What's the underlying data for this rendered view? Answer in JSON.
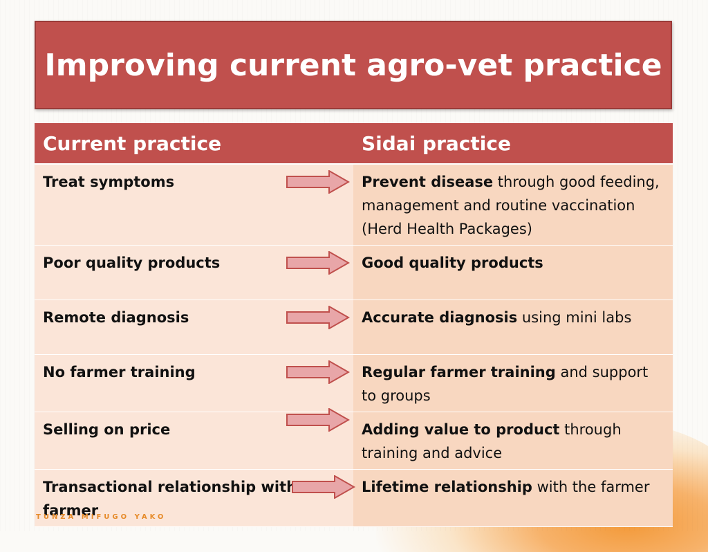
{
  "slide": {
    "title": "Improving current agro-vet practice",
    "footer_brand": "TUNZA MIFUGO YAKO"
  },
  "table": {
    "headers": {
      "current": "Current practice",
      "sidai": "Sidai practice"
    },
    "rows": [
      {
        "current": "Treat symptoms",
        "sidai_bold": "Prevent disease",
        "sidai_rest": " through good feeding, management and  routine vaccination (Herd Health Packages)"
      },
      {
        "current": "Poor quality products",
        "sidai_bold": "Good quality products",
        "sidai_rest": ""
      },
      {
        "current": "Remote diagnosis",
        "sidai_bold": "Accurate diagnosis",
        "sidai_rest": " using mini labs"
      },
      {
        "current": "No farmer training",
        "sidai_bold": "Regular farmer training",
        "sidai_rest": " and support to groups"
      },
      {
        "current": "Selling on price",
        "sidai_bold": "Adding value to product",
        "sidai_rest": " through training and advice"
      },
      {
        "current": "Transactional relationship with farmer",
        "sidai_bold": "Lifetime relationship",
        "sidai_rest": " with the farmer"
      }
    ]
  },
  "colors": {
    "title_bg": "#c0504d",
    "cell_current": "#fbe5d8",
    "cell_sidai": "#f8d7c0",
    "arrow_fill": "#e8a6a8",
    "arrow_stroke": "#c0504d"
  },
  "icons": {
    "row_arrow": "right-arrow-icon"
  }
}
